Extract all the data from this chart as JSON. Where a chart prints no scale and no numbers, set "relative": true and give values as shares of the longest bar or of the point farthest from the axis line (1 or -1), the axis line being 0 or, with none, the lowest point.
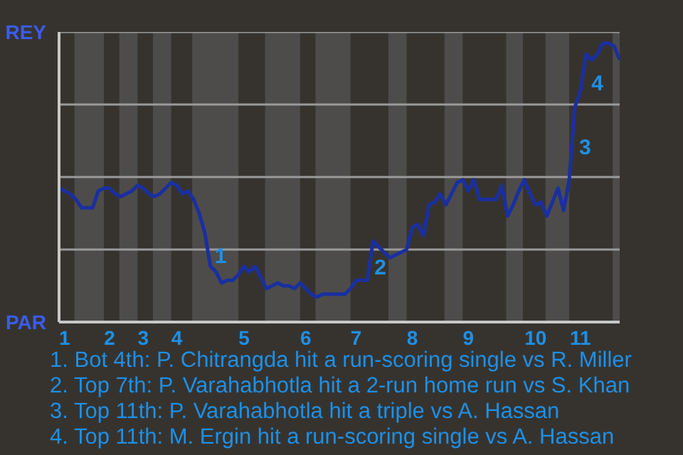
{
  "chart_data": {
    "type": "line",
    "relative": true,
    "categories": [
      null,
      "1",
      null,
      null,
      null,
      null,
      null,
      null,
      null,
      "2",
      null,
      null,
      null,
      null,
      null,
      "3",
      null,
      null,
      null,
      null,
      null,
      "4",
      null,
      null,
      null,
      null,
      null,
      null,
      null,
      null,
      null,
      null,
      null,
      "5",
      null,
      null,
      null,
      null,
      null,
      null,
      null,
      null,
      null,
      null,
      "6",
      null,
      null,
      null,
      null,
      null,
      null,
      null,
      null,
      "7",
      null,
      null,
      null,
      null,
      null,
      null,
      null,
      null,
      null,
      "8",
      null,
      null,
      null,
      null,
      null,
      null,
      null,
      null,
      null,
      "9",
      null,
      null,
      null,
      null,
      null,
      null,
      null,
      null,
      null,
      null,
      null,
      "10",
      null,
      null,
      null,
      null,
      null,
      null,
      null,
      "11",
      null,
      null,
      null,
      null,
      null,
      null,
      null
    ],
    "series": [
      {
        "color": "#1a2fa0",
        "values": [
          0.48,
          0.47,
          0.46,
          0.44,
          0.41,
          0.41,
          0.41,
          0.47,
          0.48,
          0.48,
          0.46,
          0.45,
          0.46,
          0.47,
          0.49,
          0.48,
          0.46,
          0.45,
          0.46,
          0.48,
          0.5,
          0.49,
          0.46,
          0.47,
          0.44,
          0.39,
          0.32,
          0.2,
          0.18,
          0.14,
          0.15,
          0.15,
          0.17,
          0.2,
          0.18,
          0.2,
          0.16,
          0.12,
          0.13,
          0.14,
          0.13,
          0.13,
          0.12,
          0.14,
          0.12,
          0.1,
          0.09,
          0.1,
          0.1,
          0.1,
          0.1,
          0.1,
          0.12,
          0.15,
          0.15,
          0.15,
          0.29,
          0.27,
          0.25,
          0.23,
          0.24,
          0.25,
          0.26,
          0.34,
          0.35,
          0.31,
          0.42,
          0.43,
          0.46,
          0.42,
          0.46,
          0.5,
          0.51,
          0.47,
          0.51,
          0.44,
          0.44,
          0.44,
          0.44,
          0.49,
          0.38,
          0.42,
          0.47,
          0.51,
          0.46,
          0.42,
          0.43,
          0.38,
          0.43,
          0.48,
          0.4,
          0.51,
          0.77,
          0.83,
          0.96,
          0.94,
          0.96,
          1,
          1,
          0.99,
          0.94
        ],
        "name": null
      }
    ],
    "marker": "none",
    "line_style": "solid",
    "ref_lines": [
      {
        "axis": "y",
        "value": 0.26,
        "color": "#9a9a9a"
      },
      {
        "axis": "y",
        "value": 0.52,
        "color": "#9a9a9a"
      },
      {
        "axis": "y",
        "value": 0.78,
        "color": "#9a9a9a"
      },
      {
        "axis": "y",
        "value": 1.04,
        "color": "#9a9a9a"
      }
    ],
    "annotations": [
      "REY",
      "PAR",
      "1",
      "2",
      "3",
      "4",
      "1. Bot 4th: P. Chitrangda hit a run-scoring single vs R. Miller",
      "2. Top 7th: P. Varahabhotla hit a 2-run home run vs S. Khan",
      "3. Top 11th: P. Varahabhotla hit a triple vs A. Hassan",
      "4. Top 11th: M. Ergin hit a run-scoring single vs A. Hassan"
    ]
  }
}
